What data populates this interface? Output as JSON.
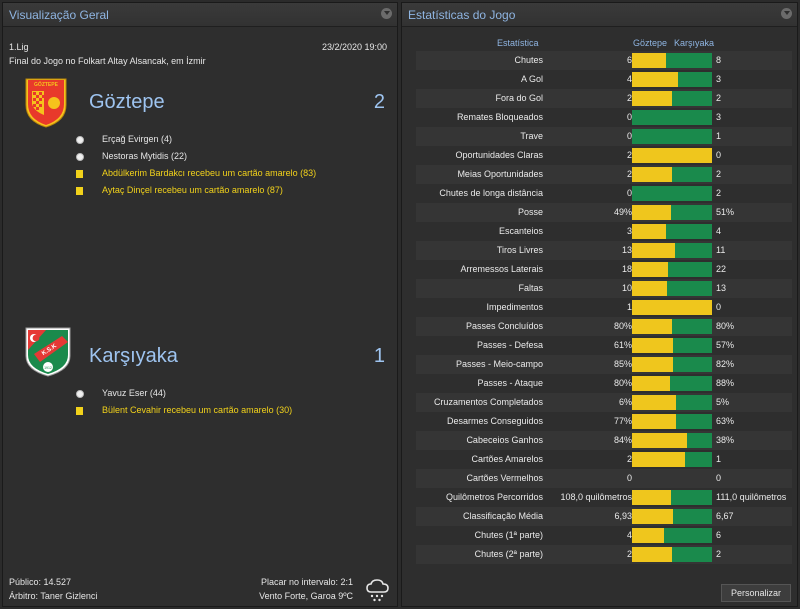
{
  "overview": {
    "title": "Visualização Geral",
    "competition": "1.Lig",
    "datetime": "23/2/2020 19:00",
    "venue": "Final do Jogo no Folkart Altay Alsancak, em İzmir",
    "home": {
      "name": "Göztepe",
      "score": "2",
      "crest_text": "GÖZTEPE",
      "crest_colors": [
        "#e8392b",
        "#f6c21c"
      ],
      "events": [
        {
          "type": "goal",
          "text": "Erçağ Evirgen (4)"
        },
        {
          "type": "goal",
          "text": "Nestoras Mytidis (22)"
        },
        {
          "type": "card",
          "text": "Abdülkerim Bardakcı recebeu um cartão amarelo (83)"
        },
        {
          "type": "card",
          "text": "Aytaç Dinçel recebeu um cartão amarelo (87)"
        }
      ]
    },
    "away": {
      "name": "Karşıyaka",
      "score": "1",
      "crest_text": "K.S.K",
      "crest_year": "1912",
      "crest_colors": [
        "#1a8a4c",
        "#e53935"
      ],
      "events": [
        {
          "type": "goal",
          "text": "Yavuz Eser (44)"
        },
        {
          "type": "card",
          "text": "Bülent Cevahir recebeu um cartão amarelo (30)"
        }
      ]
    },
    "attendance": "Público: 14.527",
    "referee": "Árbitro: Taner Gizlenci",
    "halftime": "Placar no intervalo: 2:1",
    "weather": "Vento Forte, Garoa 9ºC",
    "weather_icon": "cloud-rain-icon"
  },
  "stats": {
    "title": "Estatísticas do Jogo",
    "col_stat": "Estatística",
    "col_home": "Göztepe",
    "col_away": "Karşıyaka",
    "home_color": "#efc61d",
    "away_color": "#1a8a4c",
    "rows": [
      {
        "name": "Chutes",
        "home": "6",
        "away": "8",
        "h": 6,
        "a": 8
      },
      {
        "name": "A Gol",
        "home": "4",
        "away": "3",
        "h": 4,
        "a": 3
      },
      {
        "name": "Fora do Gol",
        "home": "2",
        "away": "2",
        "h": 2,
        "a": 2
      },
      {
        "name": "Remates Bloqueados",
        "home": "0",
        "away": "3",
        "h": 0,
        "a": 3
      },
      {
        "name": "Trave",
        "home": "0",
        "away": "1",
        "h": 0,
        "a": 1
      },
      {
        "name": "Oportunidades Claras",
        "home": "2",
        "away": "0",
        "h": 2,
        "a": 0
      },
      {
        "name": "Meias Oportunidades",
        "home": "2",
        "away": "2",
        "h": 2,
        "a": 2
      },
      {
        "name": "Chutes de longa distância",
        "home": "0",
        "away": "2",
        "h": 0,
        "a": 2
      },
      {
        "name": "Posse",
        "home": "49%",
        "away": "51%",
        "h": 49,
        "a": 51
      },
      {
        "name": "Escanteios",
        "home": "3",
        "away": "4",
        "h": 3,
        "a": 4
      },
      {
        "name": "Tiros Livres",
        "home": "13",
        "away": "11",
        "h": 13,
        "a": 11
      },
      {
        "name": "Arremessos Laterais",
        "home": "18",
        "away": "22",
        "h": 18,
        "a": 22
      },
      {
        "name": "Faltas",
        "home": "10",
        "away": "13",
        "h": 10,
        "a": 13
      },
      {
        "name": "Impedimentos",
        "home": "1",
        "away": "0",
        "h": 1,
        "a": 0
      },
      {
        "name": "Passes Concluídos",
        "home": "80%",
        "away": "80%",
        "h": 80,
        "a": 80
      },
      {
        "name": "Passes - Defesa",
        "home": "61%",
        "away": "57%",
        "h": 61,
        "a": 57
      },
      {
        "name": "Passes - Meio-campo",
        "home": "85%",
        "away": "82%",
        "h": 85,
        "a": 82
      },
      {
        "name": "Passes - Ataque",
        "home": "80%",
        "away": "88%",
        "h": 80,
        "a": 88
      },
      {
        "name": "Cruzamentos Completados",
        "home": "6%",
        "away": "5%",
        "h": 6,
        "a": 5
      },
      {
        "name": "Desarmes Conseguidos",
        "home": "77%",
        "away": "63%",
        "h": 77,
        "a": 63
      },
      {
        "name": "Cabeceios Ganhos",
        "home": "84%",
        "away": "38%",
        "h": 84,
        "a": 38
      },
      {
        "name": "Cartões Amarelos",
        "home": "2",
        "away": "1",
        "h": 2,
        "a": 1
      },
      {
        "name": "Cartões Vermelhos",
        "home": "0",
        "away": "0",
        "h": 0,
        "a": 0
      },
      {
        "name": "Quilômetros Percorridos",
        "home": "108,0 quilômetros",
        "away": "111,0 quilômetros",
        "h": 108,
        "a": 111
      },
      {
        "name": "Classificação Média",
        "home": "6,93",
        "away": "6,67",
        "h": 6.93,
        "a": 6.67
      },
      {
        "name": "Chutes (1ª parte)",
        "home": "4",
        "away": "6",
        "h": 4,
        "a": 6
      },
      {
        "name": "Chutes (2ª parte)",
        "home": "2",
        "away": "2",
        "h": 2,
        "a": 2
      }
    ],
    "customize_label": "Personalizar"
  }
}
